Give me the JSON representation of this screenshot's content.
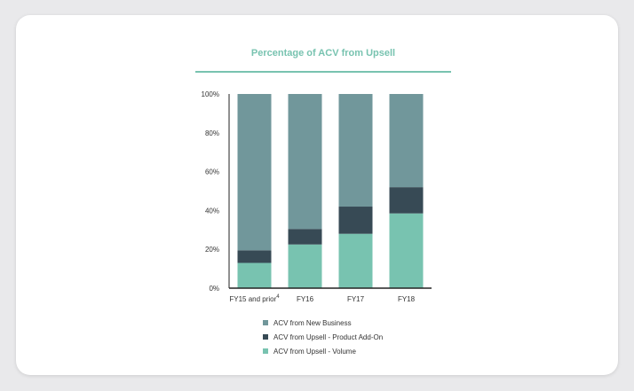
{
  "chart_data": {
    "type": "bar",
    "stacked": true,
    "title": "Percentage of ACV from Upsell",
    "categories": [
      "FY15 and prior",
      "FY16",
      "FY17",
      "FY18"
    ],
    "category_superscripts": [
      "4",
      "",
      "",
      ""
    ],
    "y_ticks": [
      "0%",
      "20%",
      "40%",
      "60%",
      "80%",
      "100%"
    ],
    "ylim": [
      0,
      100
    ],
    "series": [
      {
        "name": "ACV from Upsell - Volume",
        "color": "#78c3b0",
        "values": [
          13,
          22.5,
          28,
          38.5
        ]
      },
      {
        "name": "ACV from Upsell - Product Add-On",
        "color": "#374a55",
        "values": [
          6.5,
          8,
          14,
          13.5
        ]
      },
      {
        "name": "ACV from New Business",
        "color": "#71979b",
        "values": [
          80.5,
          69.5,
          58,
          48
        ]
      }
    ],
    "legend": {
      "position": "bottom",
      "order": [
        2,
        1,
        0
      ]
    }
  }
}
